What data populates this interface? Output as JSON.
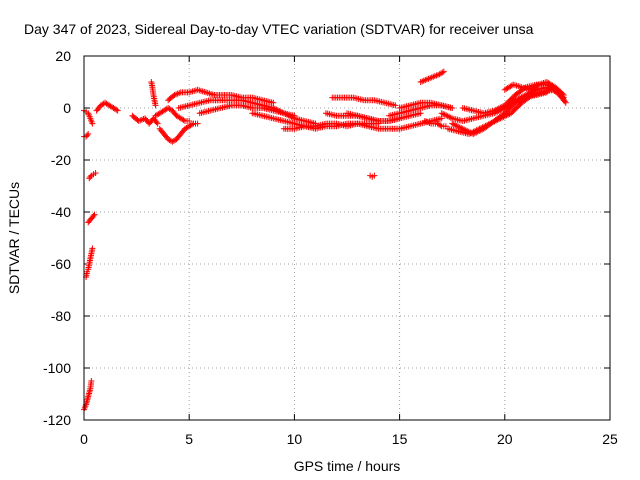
{
  "chart_data": {
    "type": "scatter",
    "title": "Day 347 of 2023, Sidereal Day-to-day VTEC variation (SDTVAR) for receiver unsa",
    "xlabel": "GPS time / hours",
    "ylabel": "SDTVAR / TECUs",
    "xlim": [
      0,
      25
    ],
    "ylim": [
      -120,
      20
    ],
    "xticks": [
      0,
      5,
      10,
      15,
      20,
      25
    ],
    "yticks": [
      -120,
      -100,
      -80,
      -60,
      -40,
      -20,
      0,
      20
    ],
    "grid": true,
    "marker": "+",
    "series_color": "#ff0000",
    "series": [
      {
        "name": "SDTVAR",
        "segments": [
          {
            "x": [
              0.0,
              0.1,
              0.2,
              0.3,
              0.35
            ],
            "y": [
              -116,
              -114,
              -111,
              -108,
              -105
            ]
          },
          {
            "x": [
              0.1,
              0.15,
              0.2,
              0.25,
              0.3,
              0.35,
              0.4
            ],
            "y": [
              -65,
              -63,
              -62,
              -60,
              -58,
              -56,
              -54
            ]
          },
          {
            "x": [
              0.2,
              0.3,
              0.4,
              0.5
            ],
            "y": [
              -44,
              -43,
              -42,
              -41
            ]
          },
          {
            "x": [
              0.25,
              0.35,
              0.45,
              0.55
            ],
            "y": [
              -27,
              -26,
              -25.5,
              -25
            ]
          },
          {
            "x": [
              0.0,
              0.1,
              0.2
            ],
            "y": [
              -11,
              -11,
              -10
            ]
          },
          {
            "x": [
              0.0,
              0.1,
              0.2,
              0.3,
              0.4
            ],
            "y": [
              -1,
              -1.5,
              -2,
              -4,
              -6
            ]
          },
          {
            "x": [
              0.6,
              0.8,
              1.0,
              1.2,
              1.4,
              1.6
            ],
            "y": [
              -1,
              1,
              2,
              1,
              0,
              -1
            ]
          },
          {
            "x": [
              2.3,
              2.6,
              2.9,
              3.1,
              3.3,
              3.5
            ],
            "y": [
              -3,
              -5,
              -4,
              -6,
              -4,
              -6
            ]
          },
          {
            "x": [
              3.2,
              3.25,
              3.3,
              3.35,
              3.4
            ],
            "y": [
              10,
              8,
              5,
              3,
              1
            ]
          },
          {
            "x": [
              3.6,
              3.8,
              4.0,
              4.2,
              4.4,
              4.6,
              4.8,
              5.0,
              5.2,
              5.4
            ],
            "y": [
              -8,
              -10,
              -12,
              -13,
              -12,
              -10,
              -8,
              -7,
              -6,
              -6
            ]
          },
          {
            "x": [
              3.4,
              3.6,
              3.8,
              4.0,
              4.2,
              4.4,
              4.6,
              4.8,
              5.0
            ],
            "y": [
              -3,
              -2,
              -1,
              0,
              -1,
              -3,
              -4,
              -5,
              -5
            ]
          },
          {
            "x": [
              4.0,
              4.3,
              4.6,
              5.0,
              5.4,
              5.8,
              6.2,
              6.6,
              7.0,
              7.5,
              8.0,
              8.5,
              9.0
            ],
            "y": [
              3,
              5,
              6,
              6,
              7,
              6,
              5,
              5,
              5,
              4,
              4,
              3,
              2
            ]
          },
          {
            "x": [
              4.5,
              5.0,
              5.5,
              6.0,
              6.5,
              7.0,
              7.5,
              8.0,
              8.5,
              9.0,
              9.5,
              10.0
            ],
            "y": [
              0,
              1,
              2,
              3,
              3,
              3,
              3,
              2,
              1,
              0,
              -2,
              -3
            ]
          },
          {
            "x": [
              5.5,
              6.0,
              6.5,
              7.0,
              7.5,
              8.0,
              8.5,
              9.0,
              9.5,
              10.0,
              10.5,
              11.0
            ],
            "y": [
              -2,
              -1,
              0,
              1,
              1,
              0,
              0,
              -1,
              -2,
              -4,
              -5,
              -6
            ]
          },
          {
            "x": [
              8.0,
              8.5,
              9.0,
              9.5,
              10.0,
              10.5,
              11.0,
              11.5,
              12.0,
              12.5,
              13.0,
              13.5,
              14.0
            ],
            "y": [
              -2,
              -3,
              -4,
              -5,
              -6,
              -7,
              -7,
              -6,
              -6,
              -7,
              -6,
              -6,
              -6
            ]
          },
          {
            "x": [
              9.5,
              10.0,
              10.5,
              11.0,
              11.5,
              12.0,
              12.5,
              13.0
            ],
            "y": [
              -8,
              -8,
              -7,
              -8,
              -7,
              -7,
              -6,
              -6
            ]
          },
          {
            "x": [
              11.5,
              12.0,
              12.5,
              13.0,
              13.5,
              14.0,
              14.5,
              15.0
            ],
            "y": [
              -2,
              -3,
              -3,
              -3,
              -4,
              -5,
              -5,
              -4
            ]
          },
          {
            "x": [
              11.8,
              12.3,
              12.8,
              13.3,
              13.8,
              14.3,
              14.8
            ],
            "y": [
              4,
              4,
              4,
              3,
              3,
              2,
              1
            ]
          },
          {
            "x": [
              12.5,
              13.0,
              13.5,
              14.0,
              14.5,
              15.0,
              15.5,
              16.0
            ],
            "y": [
              -2,
              -3,
              -4,
              -5,
              -5,
              -4,
              -3,
              -2
            ]
          },
          {
            "x": [
              13.0,
              13.5,
              14.0,
              14.5,
              15.0,
              15.5,
              16.0,
              16.5,
              17.0
            ],
            "y": [
              -6,
              -7,
              -8,
              -8,
              -8,
              -7,
              -6,
              -5,
              -4
            ]
          },
          {
            "x": [
              13.6,
              13.7,
              13.8
            ],
            "y": [
              -26,
              -26.5,
              -26
            ]
          },
          {
            "x": [
              14.5,
              15.0,
              15.5,
              16.0,
              16.5,
              17.0,
              17.5
            ],
            "y": [
              -3,
              -2,
              -1,
              0,
              1,
              1,
              0
            ]
          },
          {
            "x": [
              15.0,
              15.5,
              16.0,
              16.5,
              17.0,
              17.5
            ],
            "y": [
              0,
              1,
              2,
              2,
              1,
              0
            ]
          },
          {
            "x": [
              16.2,
              16.5,
              16.8,
              17.0,
              17.2
            ],
            "y": [
              -5,
              -6,
              -6,
              -7,
              -7
            ]
          },
          {
            "x": [
              16.0,
              16.3,
              16.6,
              16.9,
              17.1
            ],
            "y": [
              10,
              11,
              12,
              13,
              14
            ]
          },
          {
            "x": [
              17.0,
              17.5,
              18.0,
              18.5,
              19.0,
              19.5,
              20.0,
              20.5,
              21.0,
              21.5,
              22.0,
              22.5,
              22.8
            ],
            "y": [
              -2,
              -4,
              -5,
              -4,
              -3,
              -2,
              0,
              3,
              5,
              7,
              8,
              6,
              3
            ]
          },
          {
            "x": [
              17.3,
              17.8,
              18.3,
              18.8,
              19.3,
              19.8,
              20.3,
              20.8,
              21.3,
              21.8,
              22.3,
              22.8
            ],
            "y": [
              -8,
              -9,
              -10,
              -8,
              -6,
              -4,
              -2,
              2,
              5,
              6,
              7,
              4
            ]
          },
          {
            "x": [
              17.5,
              18.0,
              18.5,
              19.0,
              19.5,
              20.0,
              20.5,
              21.0,
              21.5,
              22.0
            ],
            "y": [
              -6,
              -8,
              -10,
              -8,
              -5,
              -2,
              2,
              4,
              5,
              6
            ]
          },
          {
            "x": [
              18.0,
              18.5,
              19.0,
              19.5,
              20.0,
              20.5,
              21.0,
              21.5,
              22.0,
              22.5,
              22.9
            ],
            "y": [
              0,
              -1,
              -2,
              -1,
              1,
              5,
              8,
              9,
              9,
              7,
              2
            ]
          },
          {
            "x": [
              20.0,
              20.4,
              20.8,
              21.2,
              21.6,
              22.0,
              22.4,
              22.8
            ],
            "y": [
              7,
              9,
              8,
              7,
              9,
              10,
              8,
              5
            ]
          }
        ]
      }
    ]
  }
}
